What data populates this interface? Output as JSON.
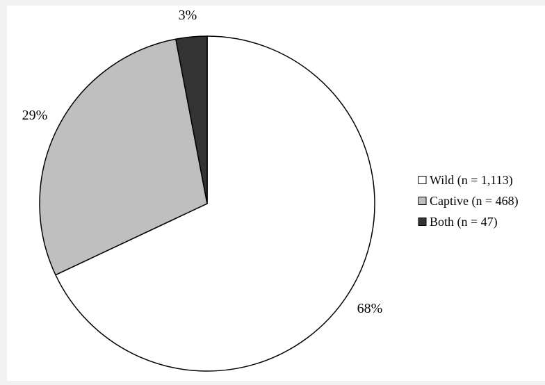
{
  "chart_data": {
    "type": "pie",
    "title": "",
    "slices": [
      {
        "label": "Wild (n = 1,113)",
        "value": 68,
        "percent_label": "68%",
        "color": "#ffffff"
      },
      {
        "label": "Captive (n = 468)",
        "value": 29,
        "percent_label": "29%",
        "color": "#bfbfbf"
      },
      {
        "label": "Both (n = 47)",
        "value": 3,
        "percent_label": "3%",
        "color": "#333333"
      }
    ],
    "start_angle": "12 o'clock",
    "direction": "clockwise",
    "legend_position": "right",
    "edge_color": "#000000"
  },
  "background_color": "#f2f2f2"
}
